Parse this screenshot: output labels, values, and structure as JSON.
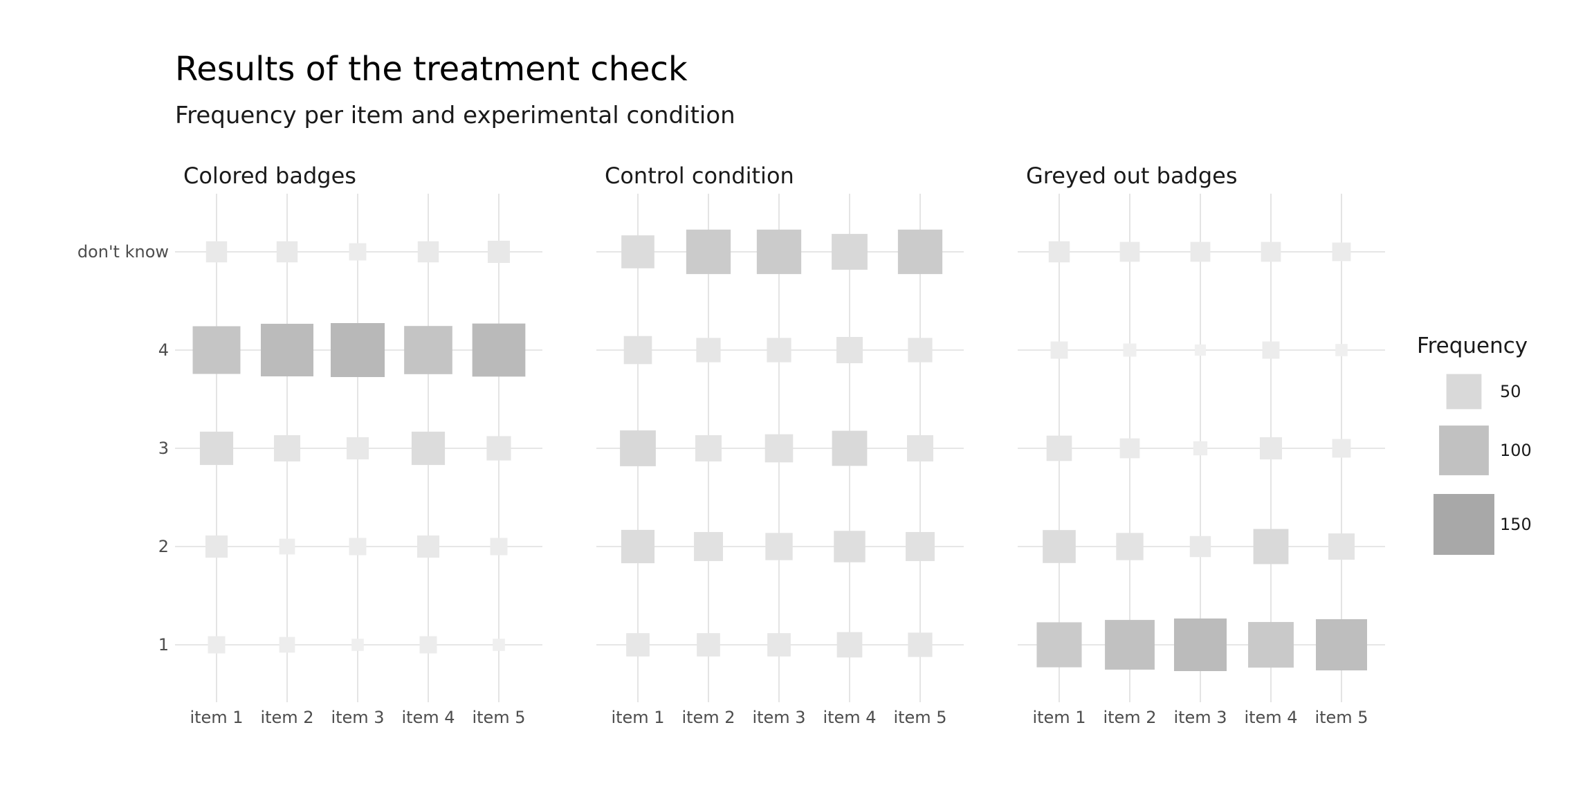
{
  "chart_data": {
    "type": "heatmap",
    "title": "Results of the treatment check",
    "subtitle": "Frequency per item and experimental condition",
    "x_categories": [
      "item 1",
      "item 2",
      "item 3",
      "item 4",
      "item 5"
    ],
    "y_categories": [
      "1",
      "2",
      "3",
      "4",
      "don't know"
    ],
    "size_encodes": "Frequency",
    "legend": {
      "title": "Frequency",
      "placement": "right",
      "entries": [
        {
          "label": "50",
          "value": 50
        },
        {
          "label": "100",
          "value": 100
        },
        {
          "label": "150",
          "value": 150
        }
      ]
    },
    "grid": true,
    "panels": [
      {
        "name": "Colored badges",
        "cells": [
          {
            "x": "item 1",
            "y": "1",
            "frequency": 12
          },
          {
            "x": "item 2",
            "y": "1",
            "frequency": 10
          },
          {
            "x": "item 3",
            "y": "1",
            "frequency": 6
          },
          {
            "x": "item 4",
            "y": "1",
            "frequency": 12
          },
          {
            "x": "item 5",
            "y": "1",
            "frequency": 6
          },
          {
            "x": "item 1",
            "y": "2",
            "frequency": 20
          },
          {
            "x": "item 2",
            "y": "2",
            "frequency": 10
          },
          {
            "x": "item 3",
            "y": "2",
            "frequency": 12
          },
          {
            "x": "item 4",
            "y": "2",
            "frequency": 20
          },
          {
            "x": "item 5",
            "y": "2",
            "frequency": 12
          },
          {
            "x": "item 1",
            "y": "3",
            "frequency": 45
          },
          {
            "x": "item 2",
            "y": "3",
            "frequency": 28
          },
          {
            "x": "item 3",
            "y": "3",
            "frequency": 20
          },
          {
            "x": "item 4",
            "y": "3",
            "frequency": 45
          },
          {
            "x": "item 5",
            "y": "3",
            "frequency": 24
          },
          {
            "x": "item 1",
            "y": "4",
            "frequency": 92
          },
          {
            "x": "item 2",
            "y": "4",
            "frequency": 112
          },
          {
            "x": "item 3",
            "y": "4",
            "frequency": 118
          },
          {
            "x": "item 4",
            "y": "4",
            "frequency": 94
          },
          {
            "x": "item 5",
            "y": "4",
            "frequency": 114
          },
          {
            "x": "item 1",
            "y": "don't know",
            "frequency": 18
          },
          {
            "x": "item 2",
            "y": "don't know",
            "frequency": 18
          },
          {
            "x": "item 3",
            "y": "don't know",
            "frequency": 12
          },
          {
            "x": "item 4",
            "y": "don't know",
            "frequency": 18
          },
          {
            "x": "item 5",
            "y": "don't know",
            "frequency": 20
          }
        ]
      },
      {
        "name": "Control condition",
        "cells": [
          {
            "x": "item 1",
            "y": "1",
            "frequency": 22
          },
          {
            "x": "item 2",
            "y": "1",
            "frequency": 22
          },
          {
            "x": "item 3",
            "y": "1",
            "frequency": 22
          },
          {
            "x": "item 4",
            "y": "1",
            "frequency": 26
          },
          {
            "x": "item 5",
            "y": "1",
            "frequency": 24
          },
          {
            "x": "item 1",
            "y": "2",
            "frequency": 45
          },
          {
            "x": "item 2",
            "y": "2",
            "frequency": 34
          },
          {
            "x": "item 3",
            "y": "2",
            "frequency": 30
          },
          {
            "x": "item 4",
            "y": "2",
            "frequency": 40
          },
          {
            "x": "item 5",
            "y": "2",
            "frequency": 34
          },
          {
            "x": "item 1",
            "y": "3",
            "frequency": 52
          },
          {
            "x": "item 2",
            "y": "3",
            "frequency": 28
          },
          {
            "x": "item 3",
            "y": "3",
            "frequency": 32
          },
          {
            "x": "item 4",
            "y": "3",
            "frequency": 50
          },
          {
            "x": "item 5",
            "y": "3",
            "frequency": 28
          },
          {
            "x": "item 1",
            "y": "4",
            "frequency": 32
          },
          {
            "x": "item 2",
            "y": "4",
            "frequency": 24
          },
          {
            "x": "item 3",
            "y": "4",
            "frequency": 24
          },
          {
            "x": "item 4",
            "y": "4",
            "frequency": 28
          },
          {
            "x": "item 5",
            "y": "4",
            "frequency": 24
          },
          {
            "x": "item 1",
            "y": "don't know",
            "frequency": 44
          },
          {
            "x": "item 2",
            "y": "don't know",
            "frequency": 80
          },
          {
            "x": "item 3",
            "y": "don't know",
            "frequency": 80
          },
          {
            "x": "item 4",
            "y": "don't know",
            "frequency": 52
          },
          {
            "x": "item 5",
            "y": "don't know",
            "frequency": 80
          }
        ]
      },
      {
        "name": "Greyed out badges",
        "cells": [
          {
            "x": "item 1",
            "y": "1",
            "frequency": 82
          },
          {
            "x": "item 2",
            "y": "1",
            "frequency": 100
          },
          {
            "x": "item 3",
            "y": "1",
            "frequency": 112
          },
          {
            "x": "item 4",
            "y": "1",
            "frequency": 84
          },
          {
            "x": "item 5",
            "y": "1",
            "frequency": 106
          },
          {
            "x": "item 1",
            "y": "2",
            "frequency": 44
          },
          {
            "x": "item 2",
            "y": "2",
            "frequency": 30
          },
          {
            "x": "item 3",
            "y": "2",
            "frequency": 18
          },
          {
            "x": "item 4",
            "y": "2",
            "frequency": 50
          },
          {
            "x": "item 5",
            "y": "2",
            "frequency": 28
          },
          {
            "x": "item 1",
            "y": "3",
            "frequency": 26
          },
          {
            "x": "item 2",
            "y": "3",
            "frequency": 16
          },
          {
            "x": "item 3",
            "y": "3",
            "frequency": 8
          },
          {
            "x": "item 4",
            "y": "3",
            "frequency": 20
          },
          {
            "x": "item 5",
            "y": "3",
            "frequency": 14
          },
          {
            "x": "item 1",
            "y": "4",
            "frequency": 12
          },
          {
            "x": "item 2",
            "y": "4",
            "frequency": 7
          },
          {
            "x": "item 3",
            "y": "4",
            "frequency": 5
          },
          {
            "x": "item 4",
            "y": "4",
            "frequency": 12
          },
          {
            "x": "item 5",
            "y": "4",
            "frequency": 6
          },
          {
            "x": "item 1",
            "y": "don't know",
            "frequency": 18
          },
          {
            "x": "item 2",
            "y": "don't know",
            "frequency": 16
          },
          {
            "x": "item 3",
            "y": "don't know",
            "frequency": 16
          },
          {
            "x": "item 4",
            "y": "don't know",
            "frequency": 16
          },
          {
            "x": "item 5",
            "y": "don't know",
            "frequency": 14
          }
        ]
      }
    ]
  }
}
